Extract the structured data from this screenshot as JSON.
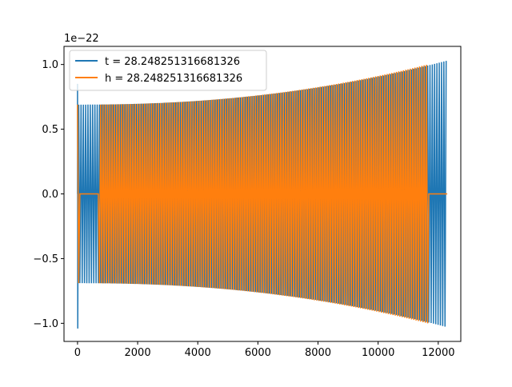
{
  "chart_data": {
    "type": "line",
    "title": "",
    "xlabel": "",
    "ylabel": "",
    "offset_text": "1e−22",
    "xlim": [
      -450,
      12750
    ],
    "ylim": [
      -1.14,
      1.14
    ],
    "xticks": [
      0,
      2000,
      4000,
      6000,
      8000,
      10000,
      12000
    ],
    "xtick_labels": [
      "0",
      "2000",
      "4000",
      "6000",
      "8000",
      "10000",
      "12000"
    ],
    "yticks": [
      -1.0,
      -0.5,
      0.0,
      0.5,
      1.0
    ],
    "ytick_labels": [
      "−1.0",
      "−0.5",
      "0.0",
      "0.5",
      "1.0"
    ],
    "grid": false,
    "legend_position": "upper-left",
    "series": [
      {
        "name": "t = 28.248251316681326",
        "color": "#1f77b4",
        "description_values": {
          "spike_at_x": 0,
          "spike_min": -1.04,
          "spike_max": 0.85,
          "initial_amplitude": 0.69,
          "final_amplitude": 1.03,
          "x_start": 0,
          "x_end": 12300,
          "cycles": 160
        }
      },
      {
        "name": "h = 28.248251316681326",
        "color": "#ff7f0e",
        "description_values": {
          "x_start": 0,
          "x_end": 12300,
          "flat_intervals": [
            [
              60,
              700
            ],
            [
              11650,
              12300
            ]
          ],
          "initial_amplitude": 0.69,
          "final_amplitude": 1.04,
          "cycles": 160
        }
      }
    ]
  }
}
